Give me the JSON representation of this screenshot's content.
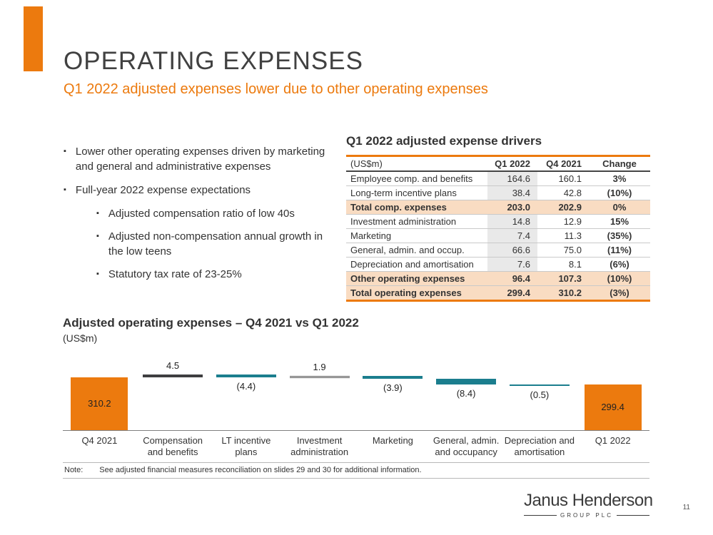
{
  "slide": {
    "title": "OPERATING EXPENSES",
    "subtitle": "Q1 2022 adjusted expenses lower due to other operating expenses"
  },
  "bullets": [
    {
      "level": 1,
      "text": "Lower other operating expenses driven by marketing and general and administrative expenses"
    },
    {
      "level": 1,
      "text": "Full-year 2022 expense expectations"
    },
    {
      "level": 2,
      "text": "Adjusted compensation ratio of low 40s"
    },
    {
      "level": 2,
      "text": "Adjusted non-compensation annual growth in the low teens"
    },
    {
      "level": 2,
      "text": "Statutory tax rate of 23-25%"
    }
  ],
  "table": {
    "title": "Q1 2022 adjusted expense drivers",
    "headers": [
      "(US$m)",
      "Q1 2022",
      "Q4 2021",
      "Change"
    ],
    "rows": [
      {
        "label": "Employee comp. and benefits",
        "q1": "164.6",
        "q4": "160.1",
        "change": "3%"
      },
      {
        "label": "Long-term incentive plans",
        "q1": "38.4",
        "q4": "42.8",
        "change": "(10%)"
      },
      {
        "label": "Total comp. expenses",
        "q1": "203.0",
        "q4": "202.9",
        "change": "0%"
      },
      {
        "label": "Investment administration",
        "q1": "14.8",
        "q4": "12.9",
        "change": "15%"
      },
      {
        "label": "Marketing",
        "q1": "7.4",
        "q4": "11.3",
        "change": "(35%)"
      },
      {
        "label": "General, admin. and occup.",
        "q1": "66.6",
        "q4": "75.0",
        "change": "(11%)"
      },
      {
        "label": "Depreciation and amortisation",
        "q1": "7.6",
        "q4": "8.1",
        "change": "(6%)"
      },
      {
        "label": "Other operating expenses",
        "q1": "96.4",
        "q4": "107.3",
        "change": "(10%)"
      },
      {
        "label": "Total operating expenses",
        "q1": "299.4",
        "q4": "310.2",
        "change": "(3%)"
      }
    ]
  },
  "chart_data": {
    "type": "waterfall",
    "title": "Adjusted operating expenses – Q4 2021 vs Q1 2022",
    "unit_label": "(US$m)",
    "start_value": 310.2,
    "end_value": 299.4,
    "bars": [
      {
        "label": "Q4 2021",
        "role": "total",
        "value": 310.2,
        "display": "310.2"
      },
      {
        "label": "Compensation and benefits",
        "role": "delta",
        "value": 4.5,
        "display": "4.5"
      },
      {
        "label": "LT incentive plans",
        "role": "delta",
        "value": -4.4,
        "display": "(4.4)"
      },
      {
        "label": "Investment administration",
        "role": "delta-light",
        "value": 1.9,
        "display": "1.9"
      },
      {
        "label": "Marketing",
        "role": "delta",
        "value": -3.9,
        "display": "(3.9)"
      },
      {
        "label": "General, admin. and occupancy",
        "role": "delta",
        "value": -8.4,
        "display": "(8.4)"
      },
      {
        "label": "Depreciation and amortisation",
        "role": "delta",
        "value": -0.5,
        "display": "(0.5)"
      },
      {
        "label": "Q1 2022",
        "role": "total",
        "value": 299.4,
        "display": "299.4"
      }
    ]
  },
  "colors": {
    "accent_orange": "#EC7A0E",
    "teal": "#1B7E8E",
    "dark_bar": "#3E3E40",
    "light_bar": "#F0F0F0",
    "highlight_row": "#F9DCC2"
  },
  "footer": {
    "note_label": "Note:",
    "note_text": "See adjusted financial measures reconciliation on slides 29 and 30 for additional information.",
    "logo_name": "Janus Henderson",
    "logo_sub": "GROUP PLC",
    "page_number": "11"
  }
}
